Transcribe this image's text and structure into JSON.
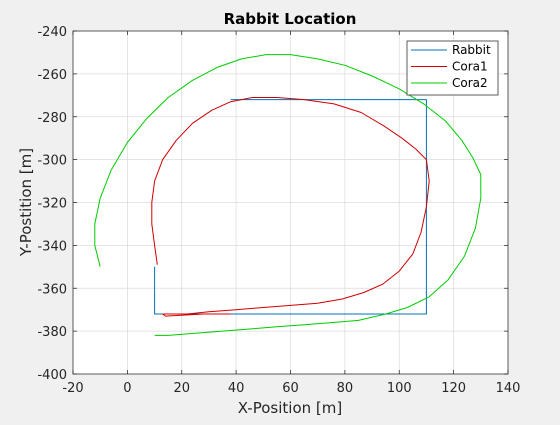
{
  "chart_data": {
    "type": "line",
    "title": "Rabbit Location",
    "xlabel": "X-Position [m]",
    "ylabel": "Y-Postition [m]",
    "xlim": [
      -20,
      140
    ],
    "ylim": [
      -400,
      -240
    ],
    "xticks": [
      -20,
      0,
      20,
      40,
      60,
      80,
      100,
      120,
      140
    ],
    "yticks": [
      -400,
      -380,
      -360,
      -340,
      -320,
      -300,
      -280,
      -260,
      -240
    ],
    "grid": true,
    "legend_position": "top-right",
    "series": [
      {
        "name": "Rabbit",
        "color": "#0072BD",
        "x": [
          10,
          10,
          110,
          110,
          38
        ],
        "y": [
          -350,
          -372,
          -372,
          -272,
          -272
        ]
      },
      {
        "name": "Cora1",
        "color": "#D00000",
        "x": [
          11,
          10,
          9,
          9,
          10,
          13,
          18,
          24,
          31,
          38,
          46,
          55,
          65,
          76,
          86,
          94,
          101,
          106,
          110,
          111,
          110,
          108,
          105,
          100,
          94,
          87,
          79,
          70,
          60,
          50,
          40,
          30,
          22,
          16,
          13,
          14,
          28,
          38
        ],
        "y": [
          -349,
          -340,
          -330,
          -320,
          -310,
          -300,
          -291,
          -283,
          -277,
          -273,
          -271,
          -271,
          -272,
          -274,
          -278,
          -284,
          -290,
          -295,
          -300,
          -310,
          -322,
          -334,
          -344,
          -352,
          -358,
          -362,
          -365,
          -367,
          -368,
          -369,
          -370,
          -371,
          -372,
          -372,
          -372,
          -373,
          -372,
          -372
        ]
      },
      {
        "name": "Cora2",
        "color": "#00CC00",
        "x": [
          -10,
          -12,
          -12,
          -10,
          -6,
          0,
          7,
          15,
          24,
          33,
          42,
          51,
          60,
          70,
          80,
          90,
          100,
          109,
          117,
          123,
          127,
          130,
          130,
          128,
          124,
          118,
          111,
          103,
          95,
          85,
          75,
          65,
          55,
          45,
          35,
          25,
          15,
          10
        ],
        "y": [
          -350,
          -340,
          -330,
          -318,
          -305,
          -292,
          -281,
          -271,
          -263,
          -257,
          -253,
          -251,
          -251,
          -253,
          -256,
          -261,
          -267,
          -274,
          -282,
          -291,
          -299,
          -307,
          -318,
          -332,
          -345,
          -356,
          -364,
          -369,
          -372,
          -375,
          -376,
          -377,
          -378,
          -379,
          -380,
          -381,
          -382,
          -382
        ]
      }
    ]
  }
}
